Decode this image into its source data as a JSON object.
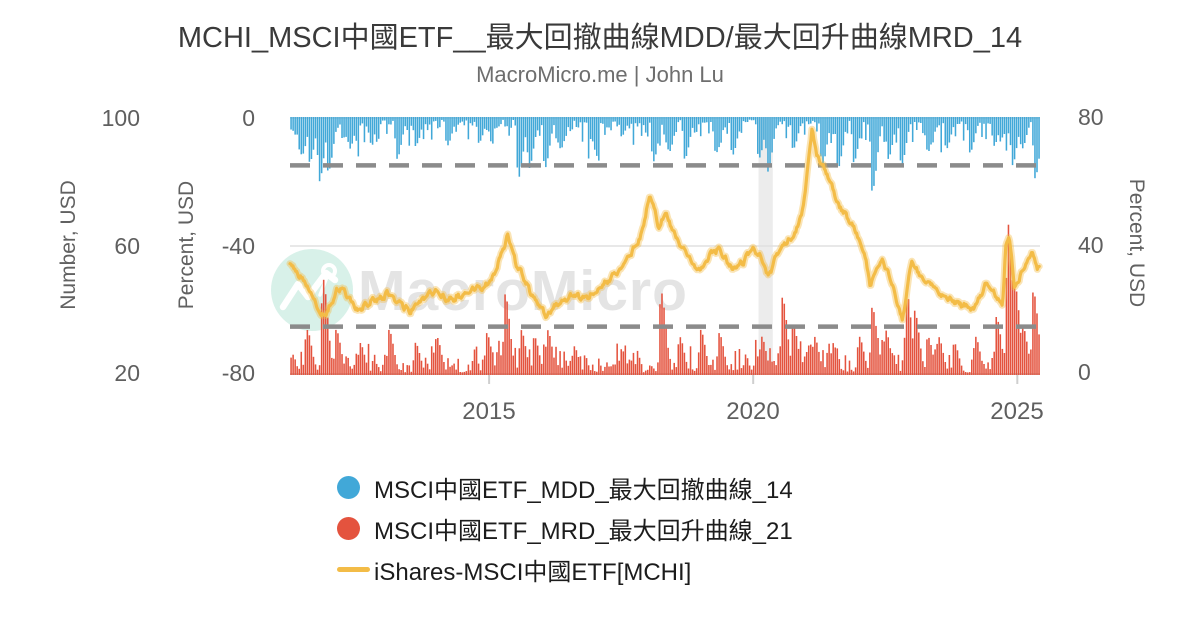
{
  "title": "MCHI_MSCI中國ETF__最大回撤曲線MDD/最大回升曲線MRD_14",
  "subtitle": "MacroMicro.me | John Lu",
  "watermark": {
    "text": "MacroMicro"
  },
  "colors": {
    "background": "#ffffff",
    "mdd_blue": "#41a8d8",
    "mrd_red": "#e4533e",
    "price_yellow": "#f3bc47",
    "threshold_dash": "#8b8b8b",
    "grid_top": "#e3e3e3",
    "grid_mid": "#e0e0e0",
    "grid_bottom": "#c9c9c9",
    "tick_mark": "#cfcfcf",
    "recession_band": "#ececec",
    "watermark_mint": "#d8f1e9",
    "watermark_gray": "#e4e4e4"
  },
  "chart_data": {
    "type": "mixed",
    "x_range": [
      2011.23,
      2025.43
    ],
    "x_ticks": [
      2015,
      2020,
      2025
    ],
    "x_tick_labels": [
      "2015",
      "2020",
      "2025"
    ],
    "axes": {
      "number_left": {
        "label": "Number, USD",
        "range": [
          20,
          100
        ],
        "tick_labels": [
          "100",
          "60",
          "20"
        ]
      },
      "percent_left": {
        "label": "Percent, USD",
        "range": [
          -80,
          0
        ],
        "tick_labels": [
          "0",
          "-40",
          "-80"
        ]
      },
      "percent_right": {
        "label": "Percent, USD",
        "range": [
          0,
          80
        ],
        "tick_labels": [
          "80",
          "40",
          "0"
        ]
      }
    },
    "thresholds": {
      "mdd_dashed_line": -15,
      "mrd_dashed_line": 15
    },
    "recession_band": [
      2020.1,
      2020.37
    ],
    "legend_position": "bottom",
    "series": [
      {
        "name": "MSCI中國ETF_MDD_最大回撤曲線_14",
        "type": "bar",
        "axis": "percent_left",
        "color": "#41a8d8",
        "marker": "circle",
        "description": "Max drawdown %, bars hang from 0; noisy -2..-10 with event spikes",
        "keypoints": [
          [
            2011.45,
            -12
          ],
          [
            2011.6,
            -14
          ],
          [
            2011.78,
            -20
          ],
          [
            2011.95,
            -17
          ],
          [
            2012.35,
            -10
          ],
          [
            2012.75,
            -8
          ],
          [
            2013.25,
            -13
          ],
          [
            2013.6,
            -9
          ],
          [
            2014.2,
            -9
          ],
          [
            2014.8,
            -8
          ],
          [
            2015.55,
            -19
          ],
          [
            2015.75,
            -16
          ],
          [
            2016.05,
            -16
          ],
          [
            2016.35,
            -10
          ],
          [
            2016.9,
            -7
          ],
          [
            2017.5,
            -6
          ],
          [
            2018.1,
            -14
          ],
          [
            2018.4,
            -11
          ],
          [
            2018.7,
            -13
          ],
          [
            2019.3,
            -11
          ],
          [
            2019.6,
            -12
          ],
          [
            2020.1,
            -13
          ],
          [
            2020.27,
            -17
          ],
          [
            2020.75,
            -10
          ],
          [
            2021.3,
            -15
          ],
          [
            2021.6,
            -16
          ],
          [
            2021.9,
            -14
          ],
          [
            2022.25,
            -23
          ],
          [
            2022.55,
            -13
          ],
          [
            2022.8,
            -15
          ],
          [
            2023.3,
            -11
          ],
          [
            2023.65,
            -10
          ],
          [
            2024.1,
            -11
          ],
          [
            2024.55,
            -9
          ],
          [
            2024.9,
            -15
          ],
          [
            2025.08,
            -10
          ],
          [
            2025.33,
            -19
          ]
        ]
      },
      {
        "name": "MSCI中國ETF_MRD_最大回升曲線_21",
        "type": "bar",
        "axis": "percent_right",
        "color": "#e4533e",
        "marker": "circle",
        "description": "Max rebound %, bars rise from 0; noisy 2..10 with event spikes",
        "keypoints": [
          [
            2011.55,
            14
          ],
          [
            2011.85,
            30
          ],
          [
            2012.1,
            14
          ],
          [
            2012.55,
            10
          ],
          [
            2013.1,
            14
          ],
          [
            2013.6,
            10
          ],
          [
            2014.0,
            12
          ],
          [
            2014.95,
            13
          ],
          [
            2015.3,
            25
          ],
          [
            2015.6,
            14
          ],
          [
            2015.85,
            12
          ],
          [
            2016.1,
            14
          ],
          [
            2016.6,
            9
          ],
          [
            2017.5,
            8
          ],
          [
            2018.25,
            26
          ],
          [
            2018.6,
            12
          ],
          [
            2019.0,
            14
          ],
          [
            2019.35,
            13
          ],
          [
            2020.15,
            12
          ],
          [
            2020.55,
            24
          ],
          [
            2020.75,
            16
          ],
          [
            2021.15,
            12
          ],
          [
            2021.5,
            10
          ],
          [
            2022.0,
            12
          ],
          [
            2022.25,
            21
          ],
          [
            2022.5,
            14
          ],
          [
            2022.9,
            26
          ],
          [
            2023.05,
            20
          ],
          [
            2023.3,
            12
          ],
          [
            2023.5,
            12
          ],
          [
            2023.8,
            10
          ],
          [
            2024.2,
            12
          ],
          [
            2024.6,
            18
          ],
          [
            2024.82,
            47
          ],
          [
            2024.95,
            28
          ],
          [
            2025.1,
            15
          ],
          [
            2025.3,
            26
          ]
        ]
      },
      {
        "name": "iShares-MSCI中國ETF[MCHI]",
        "type": "line",
        "axis": "number_left",
        "color": "#f3bc47",
        "marker": "line",
        "description": "ETF price in USD",
        "keypoints": [
          [
            2011.23,
            55
          ],
          [
            2011.4,
            51
          ],
          [
            2011.55,
            48
          ],
          [
            2011.7,
            43
          ],
          [
            2011.82,
            37.5
          ],
          [
            2011.95,
            40
          ],
          [
            2012.1,
            46
          ],
          [
            2012.2,
            47
          ],
          [
            2012.5,
            40
          ],
          [
            2012.7,
            42
          ],
          [
            2012.9,
            44
          ],
          [
            2013.1,
            45
          ],
          [
            2013.3,
            42
          ],
          [
            2013.5,
            40
          ],
          [
            2013.7,
            43
          ],
          [
            2013.95,
            46
          ],
          [
            2014.2,
            43
          ],
          [
            2014.5,
            45
          ],
          [
            2014.75,
            47
          ],
          [
            2014.95,
            48
          ],
          [
            2015.1,
            51
          ],
          [
            2015.35,
            63
          ],
          [
            2015.5,
            55
          ],
          [
            2015.65,
            50
          ],
          [
            2015.8,
            45
          ],
          [
            2016.07,
            39
          ],
          [
            2016.3,
            42
          ],
          [
            2016.55,
            45
          ],
          [
            2016.8,
            44
          ],
          [
            2017.0,
            46
          ],
          [
            2017.3,
            50
          ],
          [
            2017.6,
            55
          ],
          [
            2017.85,
            62
          ],
          [
            2018.05,
            76
          ],
          [
            2018.2,
            66
          ],
          [
            2018.35,
            70
          ],
          [
            2018.55,
            62
          ],
          [
            2018.75,
            57
          ],
          [
            2019.0,
            52
          ],
          [
            2019.15,
            57
          ],
          [
            2019.35,
            59
          ],
          [
            2019.6,
            53
          ],
          [
            2019.8,
            55
          ],
          [
            2020.0,
            59
          ],
          [
            2020.15,
            57
          ],
          [
            2020.28,
            50
          ],
          [
            2020.45,
            57
          ],
          [
            2020.6,
            61
          ],
          [
            2020.8,
            64
          ],
          [
            2020.95,
            72
          ],
          [
            2021.12,
            97
          ],
          [
            2021.2,
            88
          ],
          [
            2021.3,
            85
          ],
          [
            2021.45,
            81
          ],
          [
            2021.6,
            73
          ],
          [
            2021.8,
            68
          ],
          [
            2021.95,
            64
          ],
          [
            2022.1,
            58
          ],
          [
            2022.22,
            47
          ],
          [
            2022.35,
            53
          ],
          [
            2022.45,
            56
          ],
          [
            2022.6,
            50
          ],
          [
            2022.72,
            43
          ],
          [
            2022.82,
            37
          ],
          [
            2023.0,
            55
          ],
          [
            2023.2,
            50
          ],
          [
            2023.35,
            48
          ],
          [
            2023.6,
            45
          ],
          [
            2023.8,
            43
          ],
          [
            2024.05,
            41
          ],
          [
            2024.15,
            39.5
          ],
          [
            2024.4,
            48
          ],
          [
            2024.6,
            44
          ],
          [
            2024.72,
            42
          ],
          [
            2024.78,
            60
          ],
          [
            2024.85,
            63
          ],
          [
            2024.95,
            47
          ],
          [
            2025.1,
            52
          ],
          [
            2025.28,
            58
          ],
          [
            2025.38,
            52
          ],
          [
            2025.43,
            55
          ]
        ]
      }
    ],
    "noise": {
      "seed": 11,
      "bar_base_min": 1.3,
      "bar_base_span": 8.2,
      "line_amp": 0.9
    }
  }
}
